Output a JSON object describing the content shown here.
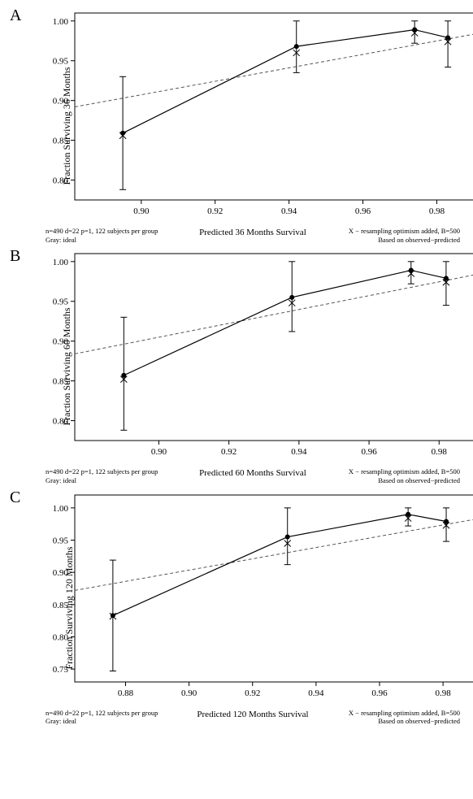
{
  "figure": {
    "background_color": "#ffffff",
    "font_family": "Times New Roman",
    "axis_color": "#000000",
    "tick_length": 5,
    "tick_fontsize": 11,
    "label_fontsize": 12,
    "panel_letter_fontsize": 20,
    "line_color": "#000000",
    "line_width": 1.2,
    "dashed_color": "#555555",
    "dashed_dash": "4,3",
    "marker_dot_radius": 3.0,
    "marker_x_size": 4,
    "errorbar_cap_halfwidth": 4,
    "footer_fontsize": 8.5,
    "xlabel_fontsize": 11
  },
  "panels": [
    {
      "letter": "A",
      "ylabel": "Fraction Surviving 36 Months",
      "xlabel": "Predicted  36 Months Survival",
      "footer_left_1": "n=490 d=22 p=1, 122 subjects per group",
      "footer_left_2": "Gray: ideal",
      "footer_right_1": "X − resampling optimism added, B=500",
      "footer_right_2": "Based on observed−predicted",
      "xlim": [
        0.882,
        0.992
      ],
      "ylim": [
        0.775,
        1.01
      ],
      "xticks": [
        0.9,
        0.92,
        0.94,
        0.96,
        0.98
      ],
      "yticks": [
        0.8,
        0.85,
        0.9,
        0.95,
        1.0
      ],
      "xtick_labels": [
        "0.90",
        "0.92",
        "0.94",
        "0.96",
        "0.98"
      ],
      "ytick_labels": [
        "0.80",
        "0.85",
        "0.90",
        "0.95",
        "1.00"
      ],
      "ideal_line": {
        "x1": 0.882,
        "y1": 0.892,
        "x2": 0.992,
        "y2": 0.985
      },
      "points": [
        {
          "x": 0.895,
          "y_dot": 0.859,
          "y_x": 0.856,
          "err_lo": 0.788,
          "err_hi": 0.93
        },
        {
          "x": 0.942,
          "y_dot": 0.968,
          "y_x": 0.96,
          "err_lo": 0.935,
          "err_hi": 1.0
        },
        {
          "x": 0.974,
          "y_dot": 0.989,
          "y_x": 0.985,
          "err_lo": 0.972,
          "err_hi": 1.0
        },
        {
          "x": 0.983,
          "y_dot": 0.979,
          "y_x": 0.974,
          "err_lo": 0.942,
          "err_hi": 1.0
        }
      ]
    },
    {
      "letter": "B",
      "ylabel": "Fraction Surviving 60 Months",
      "xlabel": "Predicted  60 Months Survival",
      "footer_left_1": "n=490 d=22 p=1, 122 subjects per group",
      "footer_left_2": "Gray: ideal",
      "footer_right_1": "X − resampling optimism added, B=500",
      "footer_right_2": "Based on observed−predicted",
      "xlim": [
        0.876,
        0.992
      ],
      "ylim": [
        0.775,
        1.01
      ],
      "xticks": [
        0.9,
        0.92,
        0.94,
        0.96,
        0.98
      ],
      "yticks": [
        0.8,
        0.85,
        0.9,
        0.95,
        1.0
      ],
      "xtick_labels": [
        "0.90",
        "0.92",
        "0.94",
        "0.96",
        "0.98"
      ],
      "ytick_labels": [
        "0.80",
        "0.85",
        "0.90",
        "0.95",
        "1.00"
      ],
      "ideal_line": {
        "x1": 0.876,
        "y1": 0.884,
        "x2": 0.992,
        "y2": 0.985
      },
      "points": [
        {
          "x": 0.89,
          "y_dot": 0.857,
          "y_x": 0.852,
          "err_lo": 0.788,
          "err_hi": 0.93
        },
        {
          "x": 0.938,
          "y_dot": 0.955,
          "y_x": 0.948,
          "err_lo": 0.912,
          "err_hi": 1.0
        },
        {
          "x": 0.972,
          "y_dot": 0.989,
          "y_x": 0.985,
          "err_lo": 0.972,
          "err_hi": 1.0
        },
        {
          "x": 0.982,
          "y_dot": 0.979,
          "y_x": 0.974,
          "err_lo": 0.945,
          "err_hi": 1.0
        }
      ]
    },
    {
      "letter": "C",
      "ylabel": "Fraction Surviving 120 Months",
      "xlabel": "Predicted  120 Months Survival",
      "footer_left_1": "n=490 d=22 p=1, 122 subjects per group",
      "footer_left_2": "Gray: ideal",
      "footer_right_1": "X − resampling optimism added, B=500",
      "footer_right_2": "Based on observed−predicted",
      "xlim": [
        0.864,
        0.992
      ],
      "ylim": [
        0.73,
        1.02
      ],
      "xticks": [
        0.88,
        0.9,
        0.92,
        0.94,
        0.96,
        0.98
      ],
      "yticks": [
        0.75,
        0.8,
        0.85,
        0.9,
        0.95,
        1.0
      ],
      "xtick_labels": [
        "0.88",
        "0.90",
        "0.92",
        "0.94",
        "0.96",
        "0.98"
      ],
      "ytick_labels": [
        "0.75",
        "0.80",
        "0.85",
        "0.90",
        "0.95",
        "1.00"
      ],
      "ideal_line": {
        "x1": 0.864,
        "y1": 0.872,
        "x2": 0.992,
        "y2": 0.984
      },
      "points": [
        {
          "x": 0.876,
          "y_dot": 0.833,
          "y_x": 0.832,
          "err_lo": 0.747,
          "err_hi": 0.919
        },
        {
          "x": 0.931,
          "y_dot": 0.955,
          "y_x": 0.945,
          "err_lo": 0.912,
          "err_hi": 1.0
        },
        {
          "x": 0.969,
          "y_dot": 0.99,
          "y_x": 0.984,
          "err_lo": 0.972,
          "err_hi": 1.0
        },
        {
          "x": 0.981,
          "y_dot": 0.979,
          "y_x": 0.973,
          "err_lo": 0.948,
          "err_hi": 1.0
        }
      ]
    }
  ]
}
